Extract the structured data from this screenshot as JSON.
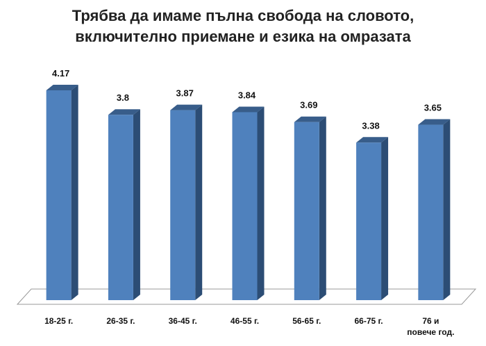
{
  "title_line1": "Трябва да имаме пълна свобода на словото,",
  "title_line2": "включително приемане и езика на омразата",
  "chart_data": {
    "type": "bar",
    "style": "3d-column",
    "categories": [
      [
        "18-25 г."
      ],
      [
        "26-35 г."
      ],
      [
        "36-45 г."
      ],
      [
        "46-55 г."
      ],
      [
        "56-65 г."
      ],
      [
        "66-75 г."
      ],
      [
        "76 и",
        "повече год."
      ]
    ],
    "values": [
      4.17,
      3.8,
      3.87,
      3.84,
      3.69,
      3.38,
      3.65
    ],
    "value_labels": [
      "4.17",
      "3.8",
      "3.87",
      "3.84",
      "3.69",
      "3.38",
      "3.65"
    ],
    "ylim": [
      1,
      5
    ],
    "grid": false,
    "legend": "none",
    "colors": {
      "front": "#4f81bd",
      "side": "#2c4d75",
      "top": "#385d8a",
      "floor": "#ffffff",
      "floor_edge": "#999999"
    }
  }
}
